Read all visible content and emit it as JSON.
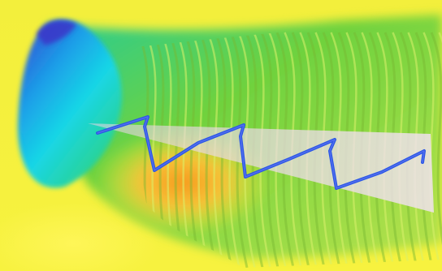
{
  "image": {
    "description_type": "3d-surface-render",
    "colors": {
      "background_yellow": "#f6f03a",
      "bright_yellow": "#fff65a",
      "green": "#8fd13a",
      "green_light": "#b8e24b",
      "cyan": "#19d6e6",
      "blue_peak": "#3a3fd1",
      "orange_core": "#f59a1f",
      "red_orange": "#f08a22",
      "plane_fill": "#e9d3e4",
      "wave_line": "#2a57e6",
      "wave_line_light": "#6e7cf1",
      "ridge_dark": "#78b830",
      "ridge_light": "#d9f06a"
    }
  }
}
